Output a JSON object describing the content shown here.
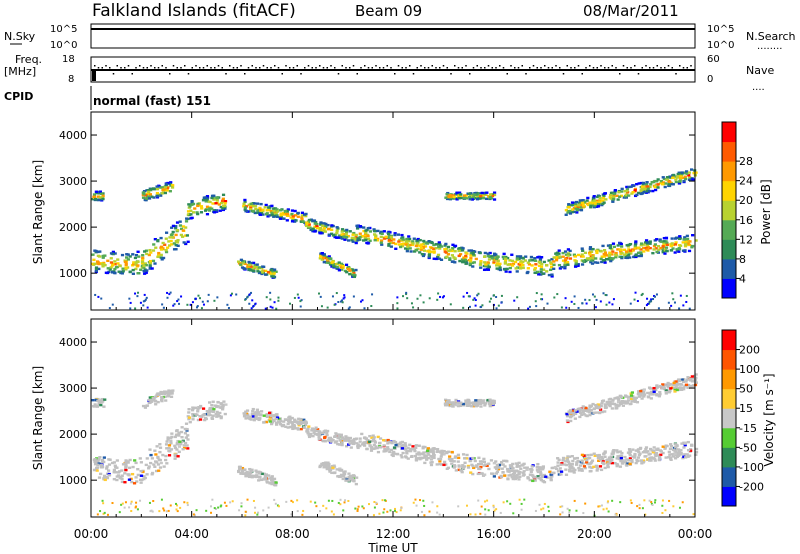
{
  "header": {
    "station": "Falkland Islands (fitACF)",
    "beam": "Beam 09",
    "date": "08/Mar/2011"
  },
  "top_panels": {
    "nsky": {
      "label": "N.Sky",
      "left_ticks": [
        "10^5",
        "10^0"
      ],
      "right_label": "N.Search",
      "right_ticks": [
        "10^5",
        "10^0"
      ],
      "right_legend": "........"
    },
    "freq": {
      "label_line1": "Freq.",
      "label_line2": "[MHz]",
      "left_ticks": [
        "18",
        "8"
      ],
      "right_label": "Nave",
      "right_ticks": [
        "60",
        "0"
      ],
      "right_legend": "...."
    },
    "cpid": {
      "label": "CPID",
      "value": "normal (fast) 151"
    }
  },
  "colors": {
    "power_scale": [
      "#0000ff",
      "#1e5aa8",
      "#2e8b57",
      "#55aa55",
      "#b8d230",
      "#ffd400",
      "#ff9900",
      "#ff5a00",
      "#ff0000"
    ],
    "velocity_scale": [
      "#0000ff",
      "#1e5aa8",
      "#2e8b57",
      "#55cc33",
      "#c8c8c8",
      "#ffcc33",
      "#ff9900",
      "#ff5500",
      "#ff0000"
    ],
    "ground_scatter": "#c0c0c0"
  },
  "chart_data": [
    {
      "type": "heatmap",
      "name": "power",
      "ylabel": "Slant Range [km]",
      "ylim": [
        200,
        4500
      ],
      "yticks": [
        "1000",
        "2000",
        "3000",
        "4000"
      ],
      "colorbar_label": "Power [dB]",
      "colorbar_ticks": [
        "4",
        "8",
        "12",
        "16",
        "20",
        "24",
        "28"
      ],
      "colorbar_range": [
        0,
        32
      ]
    },
    {
      "type": "heatmap",
      "name": "velocity",
      "ylabel": "Slant Range [km]",
      "ylim": [
        200,
        4500
      ],
      "yticks": [
        "1000",
        "2000",
        "3000",
        "4000"
      ],
      "colorbar_label": "Velocity [m s⁻¹]",
      "colorbar_ticks": [
        "200",
        "100",
        "50",
        "15",
        "-15",
        "-50",
        "-100",
        "-200"
      ]
    }
  ],
  "x_axis": {
    "ticks": [
      "00:00",
      "04:00",
      "08:00",
      "12:00",
      "16:00",
      "20:00",
      "00:00"
    ],
    "label": "Time UT",
    "range_hours": [
      0,
      24
    ]
  }
}
